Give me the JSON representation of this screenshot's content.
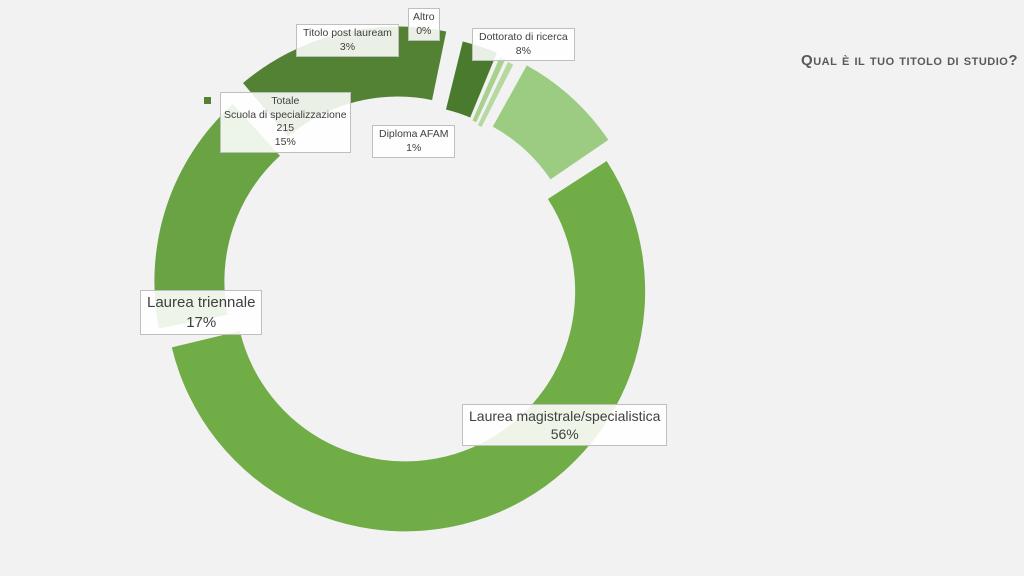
{
  "title": "Qual è il tuo titolo di studio?",
  "colors": {
    "background": "#f2f2f2",
    "laurea_magistrale": "#70ad47",
    "laurea_triennale": "#6aa343",
    "scuola_specializzazione": "#548235",
    "titolo_post_lauream": "#4a7a2e",
    "altro": "#a9d08e",
    "diploma_afam": "#b7d9a0",
    "dottorato": "#9ccc82"
  },
  "chart_data": {
    "type": "pie",
    "donut": true,
    "title": "Qual è il tuo titolo di studio?",
    "categories": [
      "Laurea magistrale/specialistica",
      "Laurea triennale",
      "Scuola di specializzazione",
      "Titolo post lauream",
      "Altro",
      "Diploma AFAM",
      "Dottorato di ricerca"
    ],
    "values": [
      56,
      17,
      15,
      3,
      0,
      1,
      8
    ],
    "value_labels": [
      "56%",
      "17%",
      "15%",
      "3%",
      "0%",
      "1%",
      "8%"
    ],
    "specialization_total": 215,
    "series_label": "Totale"
  },
  "labels": {
    "laurea_magistrale": {
      "name": "Laurea magistrale/specialistica",
      "pct": "56%"
    },
    "laurea_triennale": {
      "name": "Laurea triennale",
      "pct": "17%"
    },
    "scuola": {
      "series": "Totale",
      "name": "Scuola di specializzazione",
      "count": "215",
      "pct": "15%"
    },
    "post_lauream": {
      "name": "Titolo post lauream",
      "pct": "3%"
    },
    "altro": {
      "name": "Altro",
      "pct": "0%"
    },
    "afam": {
      "name": "Diploma AFAM",
      "pct": "1%"
    },
    "dottorato": {
      "name": "Dottorato di ricerca",
      "pct": "8%"
    }
  }
}
